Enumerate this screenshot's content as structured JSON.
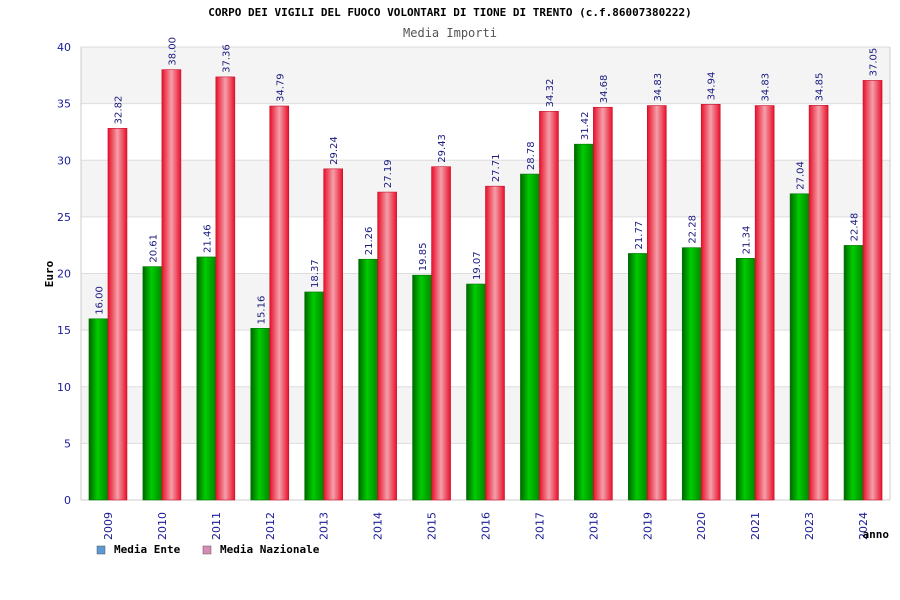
{
  "chart_data": {
    "type": "bar",
    "title": "CORPO DEI VIGILI DEL FUOCO VOLONTARI DI TIONE DI TRENTO (c.f.86007380222)",
    "subtitle": "Media Importi",
    "xlabel": "anno",
    "ylabel": "Euro",
    "ylim": [
      0,
      40
    ],
    "yticks": [
      0,
      5,
      10,
      15,
      20,
      25,
      30,
      35,
      40
    ],
    "grid": true,
    "legend_position": "bottom-left",
    "categories": [
      "2009",
      "2010",
      "2011",
      "2012",
      "2013",
      "2014",
      "2015",
      "2016",
      "2017",
      "2018",
      "2019",
      "2020",
      "2021",
      "2023",
      "2024"
    ],
    "series": [
      {
        "name": "Media Ente",
        "color": "#00b000",
        "legend_color": "#5b9bd5",
        "values": [
          16.0,
          20.61,
          21.46,
          15.16,
          18.37,
          21.26,
          19.85,
          19.07,
          28.78,
          31.42,
          21.77,
          22.28,
          21.34,
          27.04,
          22.48
        ],
        "labels": [
          "16.00",
          "20.61",
          "21.46",
          "15.16",
          "18.37",
          "21.26",
          "19.85",
          "19.07",
          "28.78",
          "31.42",
          "21.77",
          "22.28",
          "21.34",
          "27.04",
          "22.48"
        ]
      },
      {
        "name": "Media Nazionale",
        "color": "#e8102a",
        "legend_color": "#d98cb3",
        "values": [
          32.82,
          38.0,
          37.36,
          34.79,
          29.24,
          27.19,
          29.43,
          27.71,
          34.32,
          34.68,
          34.83,
          34.94,
          34.83,
          34.85,
          37.05
        ],
        "labels": [
          "32.82",
          "38.00",
          "37.36",
          "34.79",
          "29.24",
          "27.19",
          "29.43",
          "27.71",
          "34.32",
          "34.68",
          "34.83",
          "34.94",
          "34.83",
          "34.85",
          "37.05"
        ]
      }
    ]
  }
}
